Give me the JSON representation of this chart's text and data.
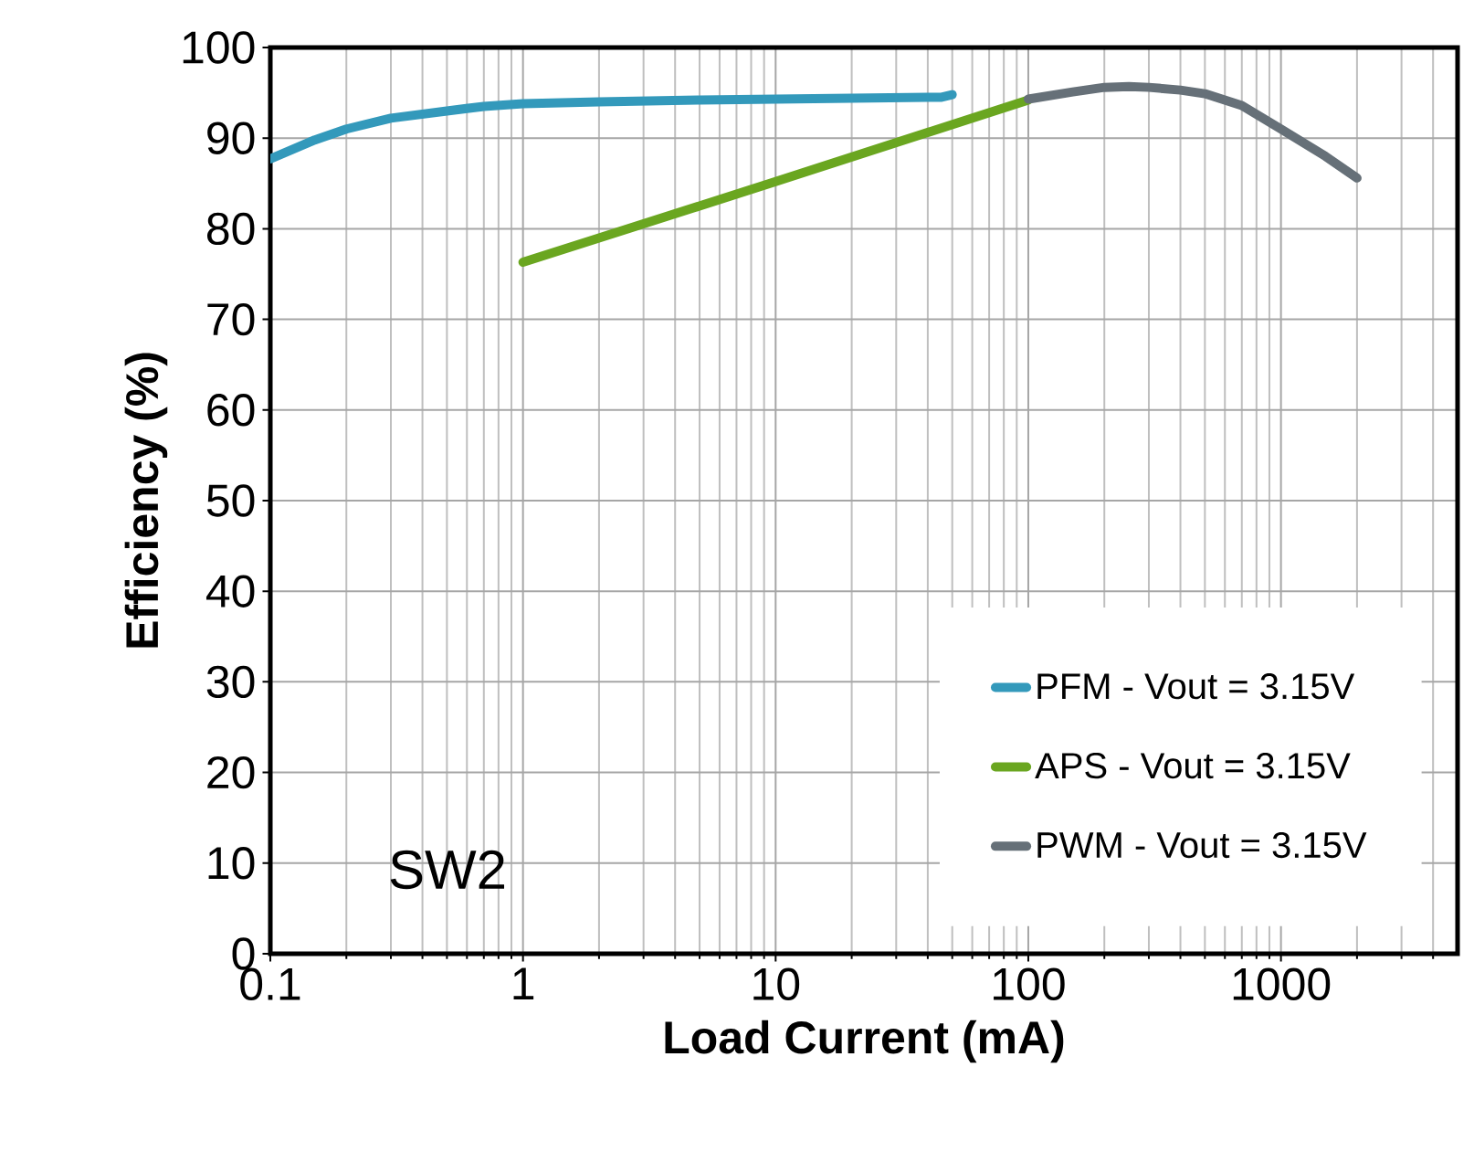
{
  "chart_data": {
    "type": "line",
    "xlabel": "Load Current (mA)",
    "ylabel": "Efficiency (%)",
    "log": "x",
    "xlim": [
      0.1,
      5000
    ],
    "xticks": [
      0.1,
      1,
      10,
      100,
      1000
    ],
    "ylim": [
      0,
      100
    ],
    "yticks": [
      0,
      10,
      20,
      30,
      40,
      50,
      60,
      70,
      80,
      90,
      100
    ],
    "grid": true,
    "legend": "bottom right",
    "annotations": [
      "SW2"
    ],
    "series": [
      {
        "name": "PFM - Vout = 3.15V",
        "color": "#3399bb",
        "x": [
          0.1,
          0.15,
          0.2,
          0.3,
          0.5,
          0.7,
          1,
          2,
          5,
          10,
          20,
          40,
          45,
          50
        ],
        "values": [
          87.7,
          89.8,
          91,
          92.2,
          93,
          93.5,
          93.8,
          94,
          94.2,
          94.3,
          94.4,
          94.5,
          94.5,
          94.8
        ]
      },
      {
        "name": "APS - Vout = 3.15V",
        "color": "#6aa620",
        "x": [
          1,
          10,
          100
        ],
        "values": [
          76.3,
          85.2,
          94.2
        ]
      },
      {
        "name": "PWM - Vout = 3.15V",
        "color": "#667078",
        "x": [
          100,
          150,
          200,
          250,
          300,
          400,
          500,
          700,
          1000,
          1500,
          2000
        ],
        "values": [
          94.3,
          95.1,
          95.6,
          95.7,
          95.6,
          95.3,
          94.9,
          93.6,
          91,
          88,
          85.6
        ]
      }
    ]
  }
}
